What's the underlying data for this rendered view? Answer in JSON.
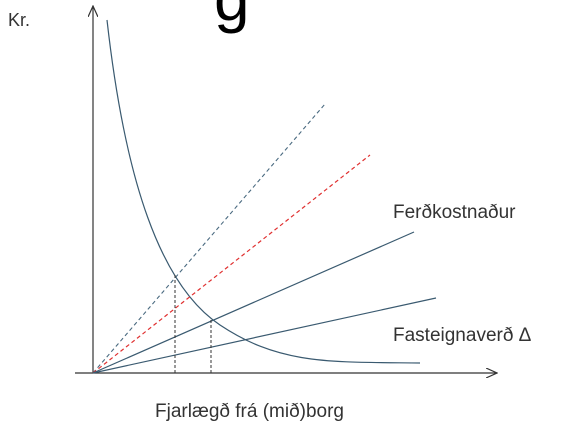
{
  "diagram": {
    "top_text_fragment": "g",
    "y_axis_label": "Kr.",
    "x_axis_label": "Fjarlægð frá (mið)borg",
    "curve_labels": {
      "travel_cost": "Ferðkostnaður",
      "property_price": "Fasteignaverð Δ"
    }
  },
  "colors": {
    "axis": "#333333",
    "solid_lines": "#3a5a70",
    "dashed_blue": "#4a6a80",
    "dashed_red": "#e03030",
    "guides": "#333333",
    "text": "#333333"
  }
}
